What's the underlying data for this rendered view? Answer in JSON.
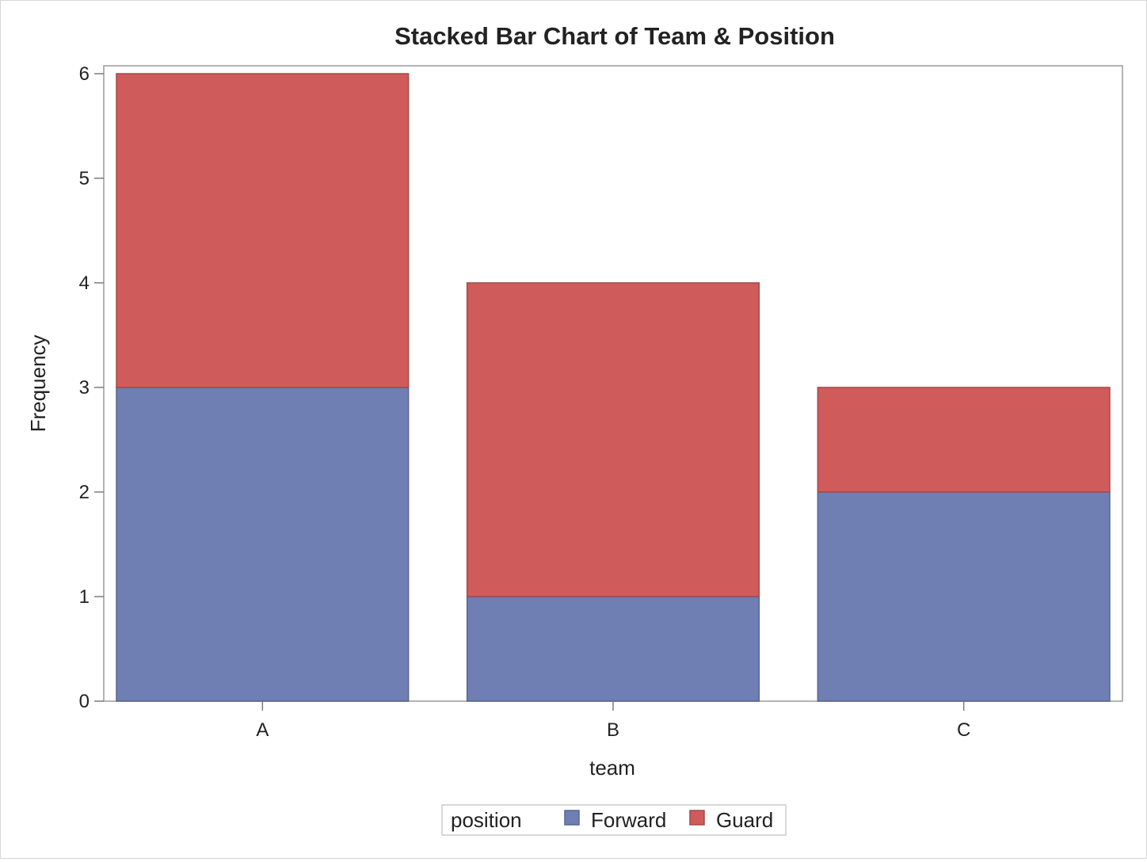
{
  "chart_data": {
    "type": "bar",
    "stacked": true,
    "title": "Stacked Bar Chart of Team & Position",
    "xlabel": "team",
    "ylabel": "Frequency",
    "categories": [
      "A",
      "B",
      "C"
    ],
    "series": [
      {
        "name": "Forward",
        "values": [
          3,
          1,
          2
        ],
        "color": "#6f7eb3"
      },
      {
        "name": "Guard",
        "values": [
          3,
          3,
          1
        ],
        "color": "#d05b5b"
      }
    ],
    "ylim": [
      0,
      6
    ],
    "yticks": [
      "0",
      "1",
      "2",
      "3",
      "4",
      "5",
      "6"
    ],
    "grid": false,
    "legend": {
      "title": "position",
      "placement": "bottom"
    }
  }
}
